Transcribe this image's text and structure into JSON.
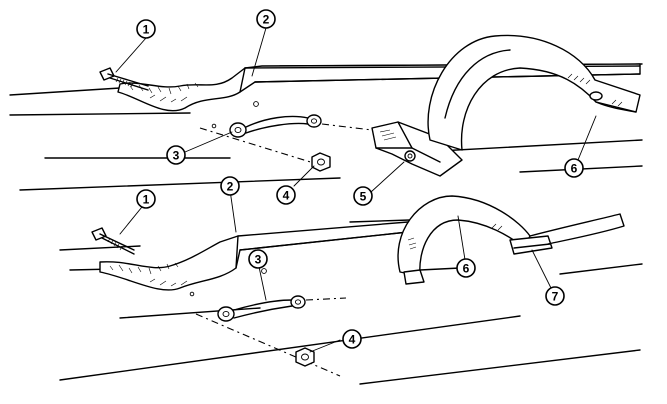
{
  "figure": {
    "callouts": [
      {
        "id": "upper-1",
        "label": "1"
      },
      {
        "id": "upper-2",
        "label": "2"
      },
      {
        "id": "upper-3",
        "label": "3"
      },
      {
        "id": "upper-4",
        "label": "4"
      },
      {
        "id": "upper-5",
        "label": "5"
      },
      {
        "id": "upper-6",
        "label": "6"
      },
      {
        "id": "lower-1",
        "label": "1"
      },
      {
        "id": "lower-2",
        "label": "2"
      },
      {
        "id": "lower-3",
        "label": "3"
      },
      {
        "id": "lower-6",
        "label": "6"
      },
      {
        "id": "lower-7",
        "label": "7"
      },
      {
        "id": "lower-4",
        "label": "4"
      }
    ]
  }
}
